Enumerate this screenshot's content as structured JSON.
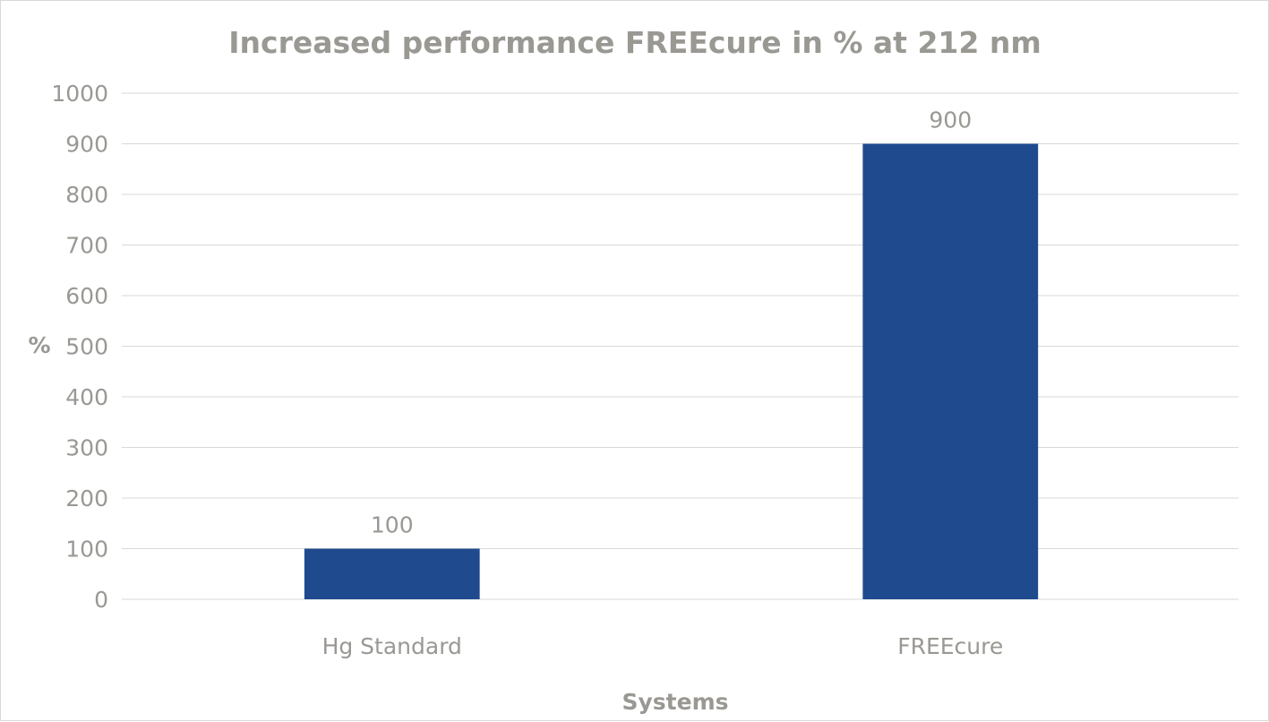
{
  "chart_data": {
    "type": "bar",
    "title": "Increased performance  FREEcure in % at 212 nm",
    "xlabel": "Systems",
    "ylabel": "%",
    "categories": [
      "Hg Standard",
      "FREEcure"
    ],
    "values": [
      100,
      900
    ],
    "ylim": [
      0,
      1000
    ],
    "yticks": [
      0,
      100,
      200,
      300,
      400,
      500,
      600,
      700,
      800,
      900,
      1000
    ],
    "grid": true,
    "data_labels": true,
    "bar_color": "#1f4a8e"
  }
}
